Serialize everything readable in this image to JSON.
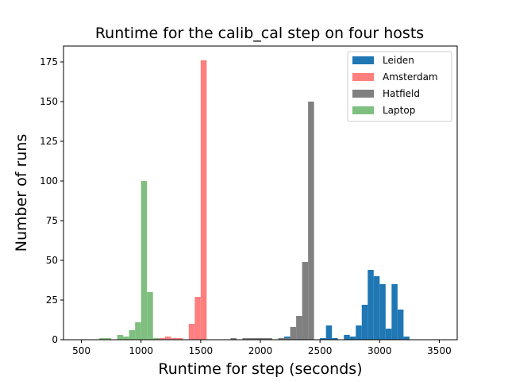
{
  "chart_data": {
    "type": "histogram",
    "title": "Runtime for the calib_cal step on four hosts",
    "xlabel": "Runtime for step (seconds)",
    "ylabel": "Number of runs",
    "xlim": [
      350,
      3650
    ],
    "ylim": [
      0,
      185
    ],
    "xticks": [
      500,
      1000,
      1500,
      2000,
      2500,
      3000,
      3500
    ],
    "yticks": [
      0,
      25,
      50,
      75,
      100,
      125,
      150,
      175
    ],
    "bin_width": 50,
    "legend_position": "top-right",
    "series": [
      {
        "name": "Leiden",
        "color": "#1f77b4",
        "opacity": 1.0,
        "bin_starts": [
          2200,
          2250,
          2350,
          2500,
          2550,
          2600,
          2700,
          2750,
          2800,
          2850,
          2900,
          2950,
          3000,
          3050,
          3100,
          3150,
          3200,
          3250,
          3300,
          3350
        ],
        "counts": [
          2,
          1,
          1,
          1,
          9,
          1,
          3,
          2,
          9,
          22,
          44,
          40,
          35,
          7,
          35,
          19,
          2,
          0,
          0,
          0
        ]
      },
      {
        "name": "Amsterdam",
        "color": "#ff7f7f",
        "opacity": 1.0,
        "bin_starts": [
          1150,
          1200,
          1250,
          1300,
          1350,
          1400,
          1450,
          1500,
          1550
        ],
        "counts": [
          1,
          2,
          1,
          1,
          0,
          10,
          27,
          176,
          0
        ]
      },
      {
        "name": "Hatfield",
        "color": "#808080",
        "opacity": 1.0,
        "bin_starts": [
          1750,
          1850,
          1900,
          1950,
          2000,
          2050,
          2150,
          2200,
          2250,
          2300,
          2350,
          2400,
          2450
        ],
        "counts": [
          1,
          1,
          1,
          1,
          1,
          1,
          1,
          1,
          8,
          15,
          49,
          150,
          0
        ]
      },
      {
        "name": "Laptop",
        "color": "#7fbf7f",
        "opacity": 1.0,
        "bin_starts": [
          650,
          700,
          750,
          800,
          850,
          900,
          950,
          1000,
          1050,
          1100
        ],
        "counts": [
          1,
          1,
          0,
          3,
          2,
          6,
          11,
          100,
          30,
          1
        ]
      }
    ]
  }
}
